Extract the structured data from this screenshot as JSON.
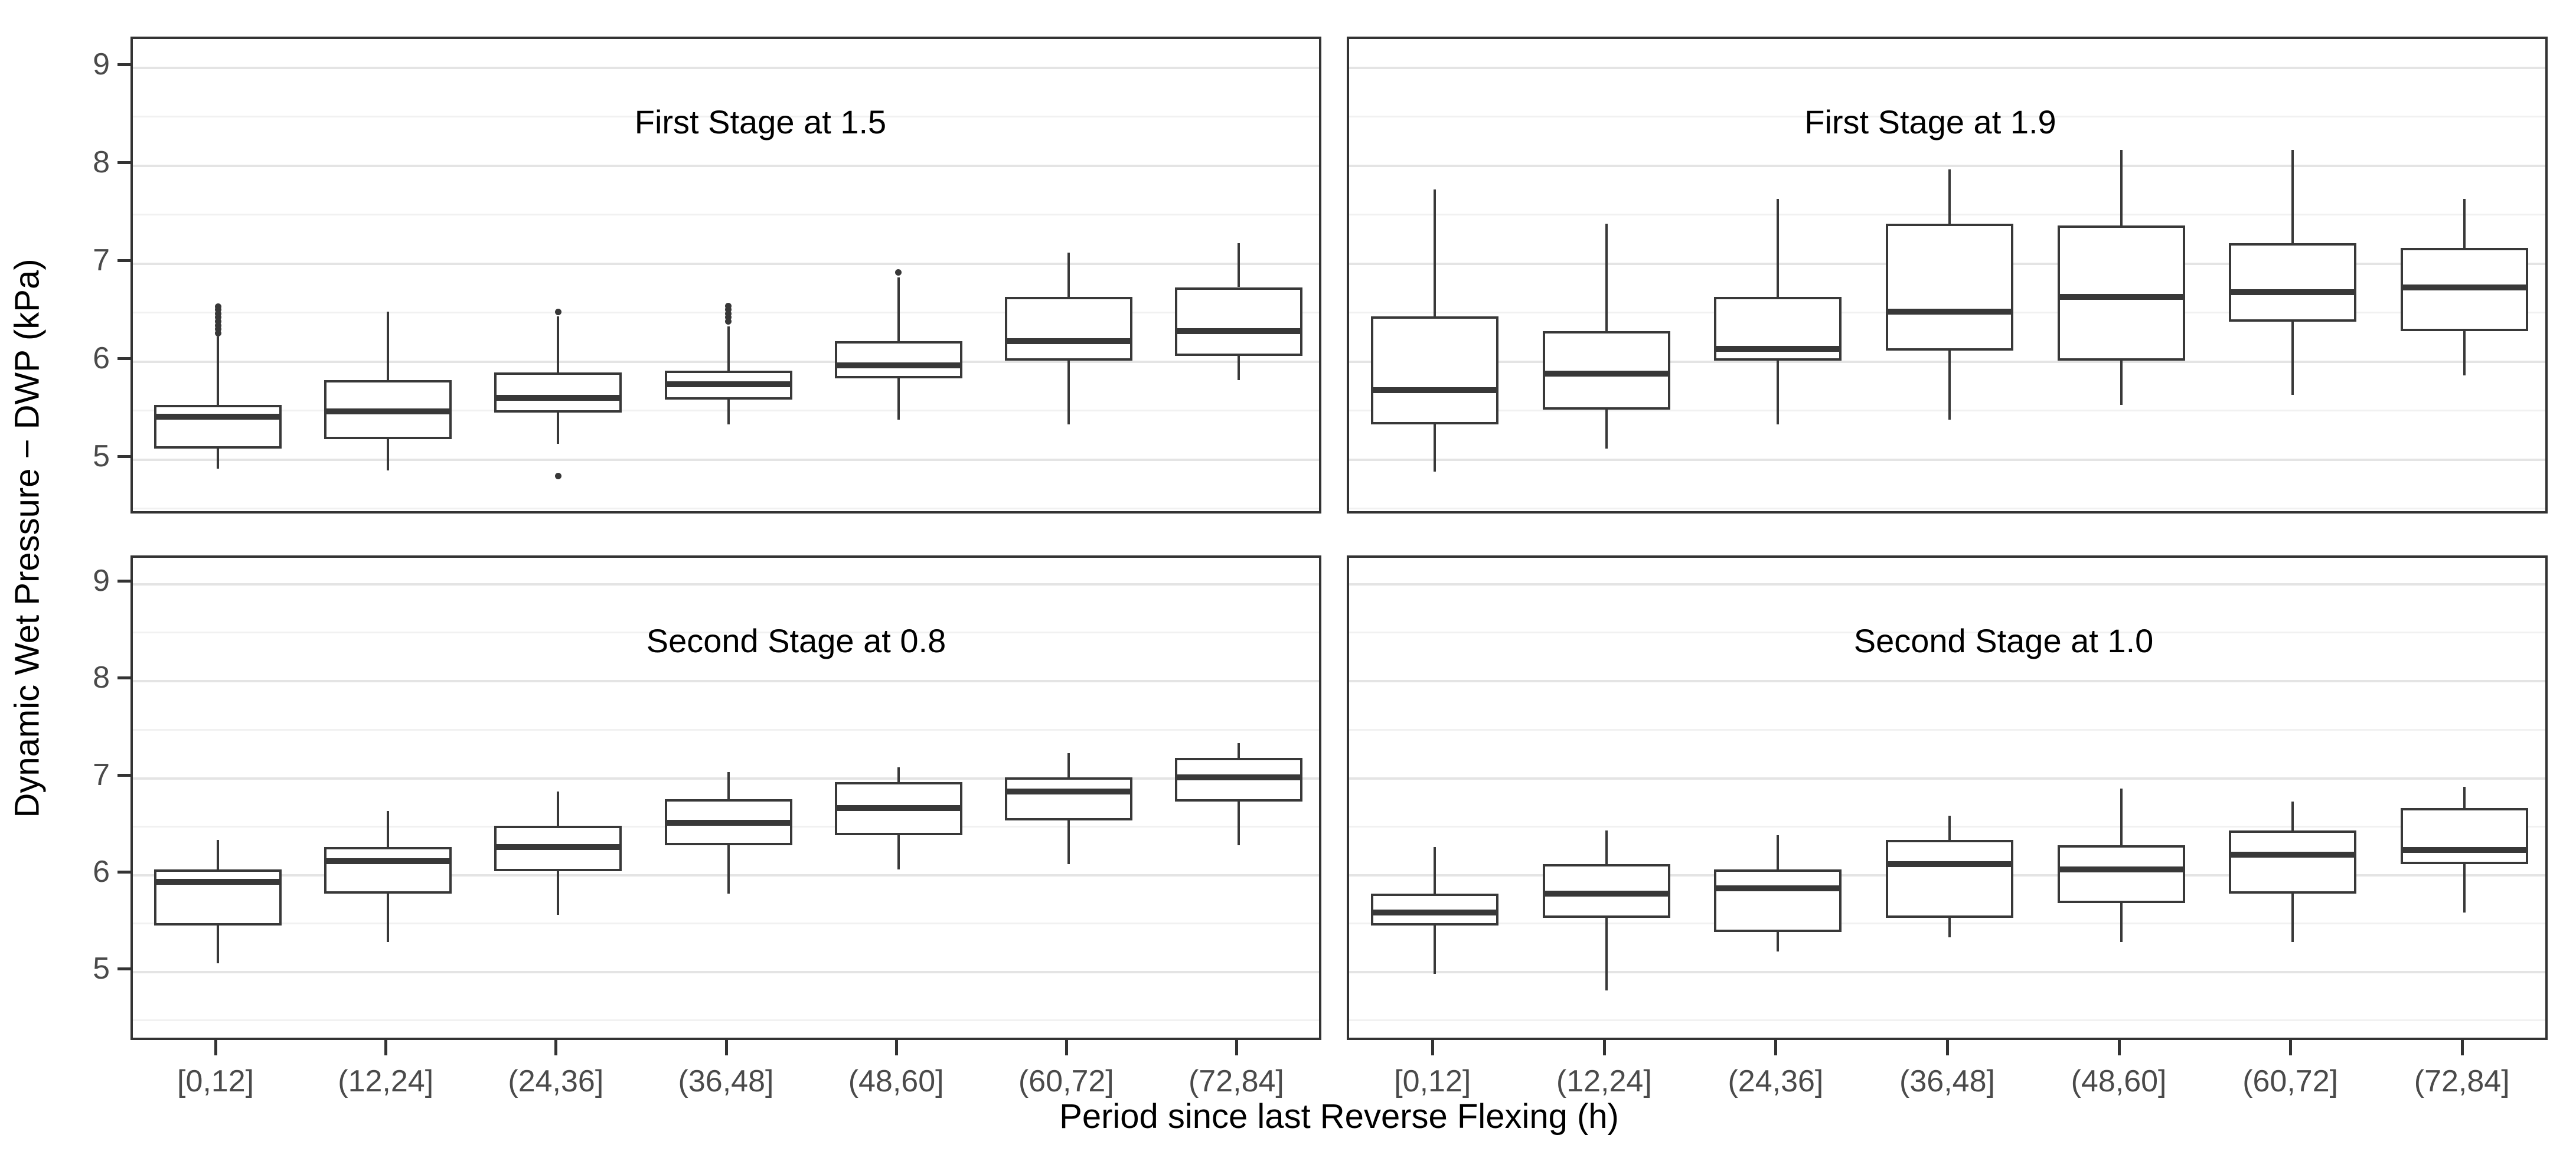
{
  "chart_data": {
    "type": "boxplot",
    "title": "",
    "xlabel": "Period since last Reverse Flexing (h)",
    "ylabel": "Dynamic Wet Pressure − DWP (kPa)",
    "y_ticks": [
      9,
      8,
      7,
      6,
      5
    ],
    "grid": "major and minor horizontal gridlines, light gray on white",
    "legend_position": "none",
    "categories": [
      "[0,12]",
      "(12,24]",
      "(24,36]",
      "(36,48]",
      "(48,60]",
      "(60,72]",
      "(72,84]"
    ],
    "row_ylim": {
      "top": [
        4.42,
        9.28
      ],
      "bottom": [
        4.26,
        9.26
      ]
    },
    "panels": [
      {
        "id": "top-left",
        "row": 0,
        "col": 0,
        "title": "First Stage at 1.5",
        "title_x_frac": 0.527,
        "boxes": [
          {
            "category": "[0,12]",
            "low": 4.9,
            "q1": 5.1,
            "median": 5.43,
            "q3": 5.55,
            "high": 6.25,
            "outliers": [
              6.28,
              6.32,
              6.36,
              6.4,
              6.44,
              6.48,
              6.52,
              6.55
            ]
          },
          {
            "category": "(12,24]",
            "low": 4.88,
            "q1": 5.2,
            "median": 5.48,
            "q3": 5.8,
            "high": 6.5,
            "outliers": []
          },
          {
            "category": "(24,36]",
            "low": 5.15,
            "q1": 5.47,
            "median": 5.62,
            "q3": 5.88,
            "high": 6.45,
            "outliers": [
              6.5,
              4.82
            ]
          },
          {
            "category": "(36,48]",
            "low": 5.35,
            "q1": 5.6,
            "median": 5.76,
            "q3": 5.9,
            "high": 6.35,
            "outliers": [
              6.4,
              6.44,
              6.48,
              6.52,
              6.56
            ]
          },
          {
            "category": "(48,60]",
            "low": 5.4,
            "q1": 5.82,
            "median": 5.95,
            "q3": 6.2,
            "high": 6.85,
            "outliers": [
              6.9
            ]
          },
          {
            "category": "(60,72]",
            "low": 5.35,
            "q1": 6.0,
            "median": 6.2,
            "q3": 6.65,
            "high": 7.1,
            "outliers": []
          },
          {
            "category": "(72,84]",
            "low": 5.8,
            "q1": 6.05,
            "median": 6.3,
            "q3": 6.75,
            "high": 7.2,
            "outliers": []
          }
        ]
      },
      {
        "id": "top-right",
        "row": 0,
        "col": 1,
        "title": "First Stage at 1.9",
        "title_x_frac": 0.484,
        "boxes": [
          {
            "category": "[0,12]",
            "low": 4.87,
            "q1": 5.35,
            "median": 5.7,
            "q3": 6.45,
            "high": 7.75,
            "outliers": []
          },
          {
            "category": "(12,24]",
            "low": 5.1,
            "q1": 5.5,
            "median": 5.87,
            "q3": 6.3,
            "high": 7.4,
            "outliers": []
          },
          {
            "category": "(24,36]",
            "low": 5.35,
            "q1": 6.0,
            "median": 6.12,
            "q3": 6.65,
            "high": 7.65,
            "outliers": []
          },
          {
            "category": "(36,48]",
            "low": 5.4,
            "q1": 6.1,
            "median": 6.5,
            "q3": 7.4,
            "high": 7.95,
            "outliers": []
          },
          {
            "category": "(48,60]",
            "low": 5.55,
            "q1": 6.0,
            "median": 6.65,
            "q3": 7.38,
            "high": 8.15,
            "outliers": []
          },
          {
            "category": "(60,72]",
            "low": 5.65,
            "q1": 6.4,
            "median": 6.7,
            "q3": 7.2,
            "high": 8.15,
            "outliers": []
          },
          {
            "category": "(72,84]",
            "low": 5.85,
            "q1": 6.3,
            "median": 6.75,
            "q3": 7.15,
            "high": 7.65,
            "outliers": []
          }
        ]
      },
      {
        "id": "bottom-left",
        "row": 1,
        "col": 0,
        "title": "Second Stage at 0.8",
        "title_x_frac": 0.557,
        "boxes": [
          {
            "category": "[0,12]",
            "low": 5.08,
            "q1": 5.47,
            "median": 5.92,
            "q3": 6.05,
            "high": 6.35,
            "outliers": []
          },
          {
            "category": "(12,24]",
            "low": 5.3,
            "q1": 5.8,
            "median": 6.13,
            "q3": 6.28,
            "high": 6.65,
            "outliers": []
          },
          {
            "category": "(24,36]",
            "low": 5.58,
            "q1": 6.03,
            "median": 6.28,
            "q3": 6.5,
            "high": 6.85,
            "outliers": []
          },
          {
            "category": "(36,48]",
            "low": 5.8,
            "q1": 6.3,
            "median": 6.53,
            "q3": 6.77,
            "high": 7.05,
            "outliers": []
          },
          {
            "category": "(48,60]",
            "low": 6.05,
            "q1": 6.4,
            "median": 6.68,
            "q3": 6.95,
            "high": 7.1,
            "outliers": []
          },
          {
            "category": "(60,72]",
            "low": 6.1,
            "q1": 6.55,
            "median": 6.85,
            "q3": 7.0,
            "high": 7.25,
            "outliers": []
          },
          {
            "category": "(72,84]",
            "low": 6.3,
            "q1": 6.75,
            "median": 7.0,
            "q3": 7.2,
            "high": 7.35,
            "outliers": []
          }
        ]
      },
      {
        "id": "bottom-right",
        "row": 1,
        "col": 1,
        "title": "Second Stage at 1.0",
        "title_x_frac": 0.545,
        "boxes": [
          {
            "category": "[0,12]",
            "low": 4.97,
            "q1": 5.47,
            "median": 5.6,
            "q3": 5.8,
            "high": 6.28,
            "outliers": []
          },
          {
            "category": "(12,24]",
            "low": 4.8,
            "q1": 5.55,
            "median": 5.8,
            "q3": 6.1,
            "high": 6.45,
            "outliers": []
          },
          {
            "category": "(24,36]",
            "low": 5.2,
            "q1": 5.4,
            "median": 5.85,
            "q3": 6.05,
            "high": 6.4,
            "outliers": []
          },
          {
            "category": "(36,48]",
            "low": 5.35,
            "q1": 5.55,
            "median": 6.1,
            "q3": 6.35,
            "high": 6.6,
            "outliers": []
          },
          {
            "category": "(48,60]",
            "low": 5.3,
            "q1": 5.7,
            "median": 6.05,
            "q3": 6.3,
            "high": 6.88,
            "outliers": []
          },
          {
            "category": "(60,72]",
            "low": 5.3,
            "q1": 5.8,
            "median": 6.2,
            "q3": 6.45,
            "high": 6.75,
            "outliers": []
          },
          {
            "category": "(72,84]",
            "low": 5.6,
            "q1": 6.1,
            "median": 6.25,
            "q3": 6.68,
            "high": 6.9,
            "outliers": []
          }
        ]
      }
    ]
  }
}
